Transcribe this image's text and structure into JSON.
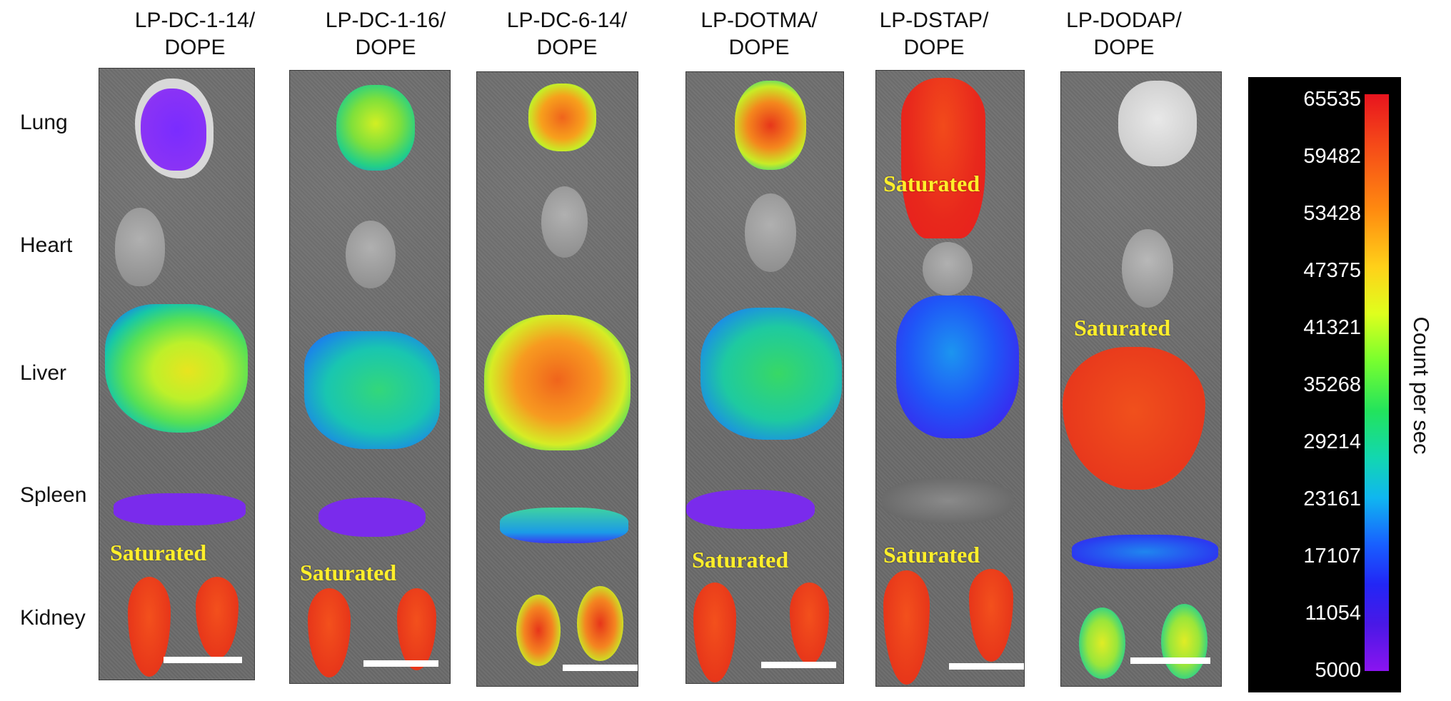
{
  "columns": [
    {
      "title": "LP-DC-1-14/\nDOPE"
    },
    {
      "title": "LP-DC-1-16/\nDOPE"
    },
    {
      "title": "LP-DC-6-14/\nDOPE"
    },
    {
      "title": "LP-DOTMA/\nDOPE"
    },
    {
      "title": "LP-DSTAP/\nDOPE"
    },
    {
      "title": "LP-DODAP/\nDOPE"
    }
  ],
  "rows": [
    "Lung",
    "Heart",
    "Liver",
    "Spleen",
    "Kidney"
  ],
  "saturated_label": "Saturated",
  "colorbar": {
    "label": "Count per sec",
    "ticks": [
      "65535",
      "59482",
      "53428",
      "47375",
      "41321",
      "35268",
      "29214",
      "23161",
      "17107",
      "11054",
      "5000"
    ],
    "colors": {
      "max": "#e8141e",
      "mid": "#7aff2e",
      "min": "#8a14f0"
    }
  }
}
